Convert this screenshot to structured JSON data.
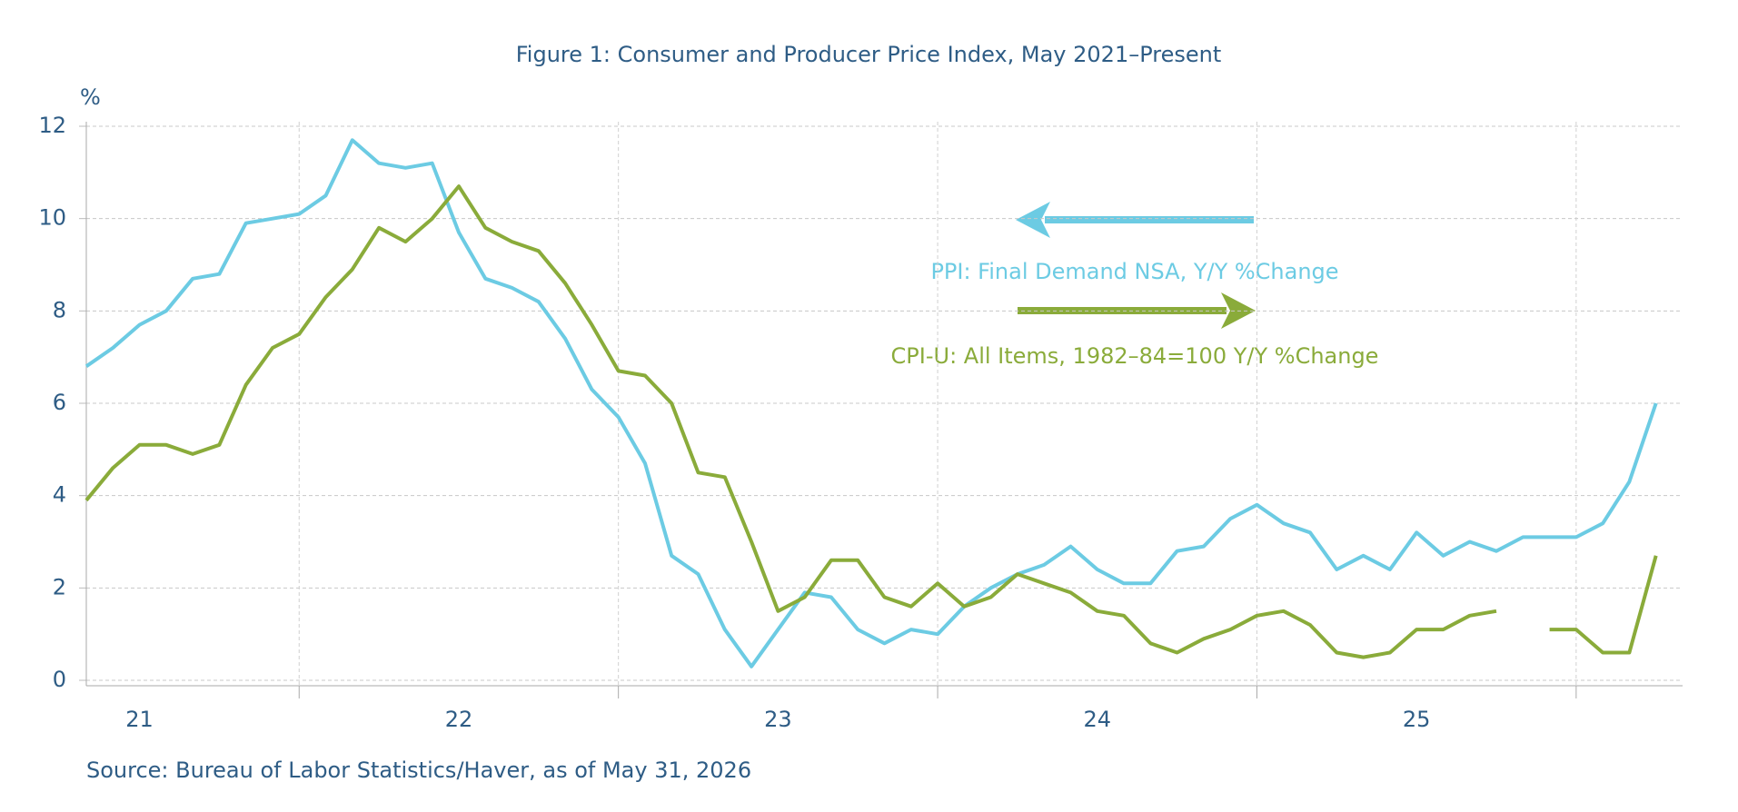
{
  "chart_data": {
    "type": "line",
    "title": "Figure 1: Consumer and Producer Price Index, May 2021–Present",
    "source": "Source: Bureau of Labor Statistics/Haver, as of May 31, 2026",
    "y_label": "%",
    "categories": [
      null,
      null,
      "21",
      null,
      null,
      null,
      null,
      null,
      null,
      null,
      null,
      null,
      null,
      null,
      "22",
      null,
      null,
      null,
      null,
      null,
      null,
      null,
      null,
      null,
      null,
      null,
      "23",
      null,
      null,
      null,
      null,
      null,
      null,
      null,
      null,
      null,
      null,
      null,
      "24",
      null,
      null,
      null,
      null,
      null,
      null,
      null,
      null,
      null,
      null,
      null,
      "25",
      null,
      null,
      null,
      null,
      null,
      null,
      null,
      null,
      null
    ],
    "series": [
      {
        "name": "PPI: Final Demand NSA, Y/Y %Change",
        "color": "#6ccbe3",
        "values": [
          6.8,
          7.2,
          7.7,
          8.0,
          8.7,
          8.8,
          9.9,
          10.0,
          10.1,
          10.5,
          11.7,
          11.2,
          11.1,
          11.2,
          9.7,
          8.7,
          8.5,
          8.2,
          7.4,
          6.3,
          5.7,
          4.7,
          2.7,
          2.3,
          1.1,
          0.3,
          1.1,
          1.9,
          1.8,
          1.1,
          0.8,
          1.1,
          1.0,
          1.6,
          2.0,
          2.3,
          2.5,
          2.9,
          2.4,
          2.1,
          2.1,
          2.8,
          2.9,
          3.5,
          3.8,
          3.4,
          3.2,
          2.4,
          2.7,
          2.4,
          3.2,
          2.7,
          3.0,
          2.8,
          3.1,
          3.1,
          3.1,
          3.4,
          4.3,
          6.0
        ]
      },
      {
        "name": "CPI-U: All Items, 1982–84=100 Y/Y %Change",
        "color": "#8aab3a",
        "values": [
          3.9,
          4.6,
          5.1,
          5.1,
          4.9,
          5.1,
          6.4,
          7.2,
          7.5,
          8.3,
          8.9,
          9.8,
          9.5,
          10.0,
          10.7,
          9.8,
          9.5,
          9.3,
          8.6,
          7.7,
          6.7,
          6.6,
          6.0,
          4.5,
          4.4,
          3.0,
          1.5,
          1.8,
          2.6,
          2.6,
          1.8,
          1.6,
          2.1,
          1.6,
          1.8,
          2.3,
          2.1,
          1.9,
          1.5,
          1.4,
          0.8,
          0.6,
          0.9,
          1.1,
          1.4,
          1.5,
          1.2,
          0.6,
          0.5,
          0.6,
          1.1,
          1.1,
          1.4,
          1.5,
          null,
          1.1,
          1.1,
          0.6,
          0.6,
          2.7
        ]
      }
    ],
    "ylim": [
      0,
      12
    ],
    "yticks": [
      0,
      2,
      4,
      6,
      8,
      10,
      12
    ],
    "grid": true
  }
}
